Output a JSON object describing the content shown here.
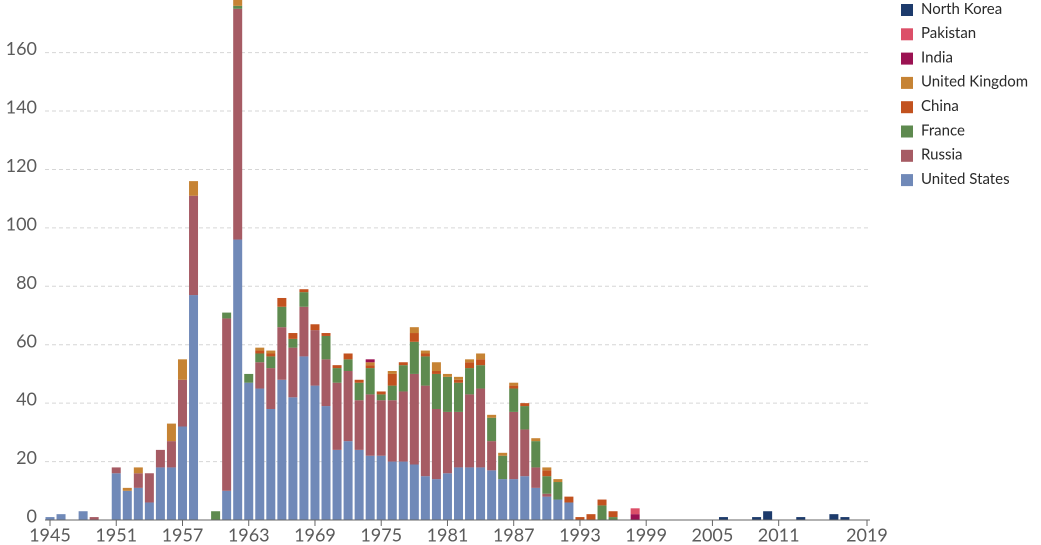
{
  "chart_data": {
    "type": "bar",
    "stacked": true,
    "legend": "right",
    "grid": true,
    "x": [
      1945,
      1946,
      1947,
      1948,
      1949,
      1950,
      1951,
      1952,
      1953,
      1954,
      1955,
      1956,
      1957,
      1958,
      1959,
      1960,
      1961,
      1962,
      1963,
      1964,
      1965,
      1966,
      1967,
      1968,
      1969,
      1970,
      1971,
      1972,
      1973,
      1974,
      1975,
      1976,
      1977,
      1978,
      1979,
      1980,
      1981,
      1982,
      1983,
      1984,
      1985,
      1986,
      1987,
      1988,
      1989,
      1990,
      1991,
      1992,
      1993,
      1994,
      1995,
      1996,
      1997,
      1998,
      1999,
      2000,
      2001,
      2002,
      2003,
      2004,
      2005,
      2006,
      2007,
      2008,
      2009,
      2010,
      2011,
      2012,
      2013,
      2014,
      2015,
      2016,
      2017,
      2018,
      2019
    ],
    "xlim": [
      1945,
      2019
    ],
    "xticks": [
      1945,
      1951,
      1957,
      1963,
      1969,
      1975,
      1981,
      1987,
      1993,
      1999,
      2005,
      2011,
      2019
    ],
    "ylim": [
      0,
      178
    ],
    "yticks": [
      0,
      20,
      40,
      60,
      80,
      100,
      120,
      140,
      160
    ],
    "series": [
      {
        "name": "United States",
        "color": "#7089b8",
        "values": [
          1,
          2,
          0,
          3,
          0,
          0,
          16,
          10,
          11,
          6,
          18,
          18,
          32,
          77,
          0,
          0,
          10,
          96,
          47,
          45,
          38,
          48,
          42,
          56,
          46,
          39,
          24,
          27,
          24,
          22,
          22,
          20,
          20,
          19,
          15,
          14,
          16,
          18,
          18,
          18,
          17,
          14,
          14,
          15,
          11,
          8,
          7,
          6,
          0,
          0,
          0,
          0,
          0,
          0,
          0,
          0,
          0,
          0,
          0,
          0,
          0,
          0,
          0,
          0,
          0,
          0,
          0,
          0,
          0,
          0,
          0,
          0,
          0,
          0,
          0
        ]
      },
      {
        "name": "Russia",
        "color": "#a65b64",
        "values": [
          0,
          0,
          0,
          0,
          1,
          0,
          2,
          0,
          5,
          10,
          6,
          9,
          16,
          34,
          0,
          0,
          59,
          79,
          0,
          9,
          14,
          18,
          17,
          17,
          19,
          16,
          23,
          24,
          17,
          21,
          19,
          21,
          24,
          31,
          31,
          24,
          21,
          19,
          25,
          27,
          10,
          0,
          23,
          16,
          7,
          1,
          0,
          0,
          0,
          0,
          0,
          0,
          0,
          0,
          0,
          0,
          0,
          0,
          0,
          0,
          0,
          0,
          0,
          0,
          0,
          0,
          0,
          0,
          0,
          0,
          0,
          0,
          0,
          0,
          0
        ]
      },
      {
        "name": "France",
        "color": "#5e8a4f",
        "values": [
          0,
          0,
          0,
          0,
          0,
          0,
          0,
          0,
          0,
          0,
          0,
          0,
          0,
          0,
          0,
          3,
          2,
          1,
          3,
          3,
          4,
          7,
          3,
          5,
          0,
          8,
          5,
          4,
          6,
          9,
          2,
          5,
          9,
          11,
          10,
          12,
          12,
          10,
          9,
          8,
          8,
          8,
          8,
          8,
          9,
          6,
          6,
          0,
          0,
          0,
          5,
          1,
          0,
          0,
          0,
          0,
          0,
          0,
          0,
          0,
          0,
          0,
          0,
          0,
          0,
          0,
          0,
          0,
          0,
          0,
          0,
          0,
          0,
          0,
          0
        ]
      },
      {
        "name": "China",
        "color": "#c2521f",
        "values": [
          0,
          0,
          0,
          0,
          0,
          0,
          0,
          0,
          0,
          0,
          0,
          0,
          0,
          0,
          0,
          0,
          0,
          0,
          0,
          1,
          1,
          3,
          2,
          1,
          2,
          1,
          1,
          2,
          1,
          1,
          1,
          4,
          1,
          3,
          1,
          1,
          0,
          1,
          2,
          2,
          0,
          0,
          1,
          1,
          0,
          2,
          0,
          2,
          1,
          2,
          2,
          2,
          0,
          0,
          0,
          0,
          0,
          0,
          0,
          0,
          0,
          0,
          0,
          0,
          0,
          0,
          0,
          0,
          0,
          0,
          0,
          0,
          0,
          0,
          0
        ]
      },
      {
        "name": "United Kingdom",
        "color": "#c68334",
        "values": [
          0,
          0,
          0,
          0,
          0,
          0,
          0,
          1,
          2,
          0,
          0,
          6,
          7,
          5,
          0,
          0,
          0,
          2,
          0,
          1,
          1,
          0,
          0,
          0,
          0,
          0,
          0,
          0,
          0,
          1,
          0,
          1,
          0,
          2,
          1,
          3,
          1,
          1,
          1,
          2,
          1,
          1,
          1,
          0,
          1,
          1,
          1,
          0,
          0,
          0,
          0,
          0,
          0,
          0,
          0,
          0,
          0,
          0,
          0,
          0,
          0,
          0,
          0,
          0,
          0,
          0,
          0,
          0,
          0,
          0,
          0,
          0,
          0,
          0,
          0
        ]
      },
      {
        "name": "India",
        "color": "#9b1252",
        "values": [
          0,
          0,
          0,
          0,
          0,
          0,
          0,
          0,
          0,
          0,
          0,
          0,
          0,
          0,
          0,
          0,
          0,
          0,
          0,
          0,
          0,
          0,
          0,
          0,
          0,
          0,
          0,
          0,
          0,
          1,
          0,
          0,
          0,
          0,
          0,
          0,
          0,
          0,
          0,
          0,
          0,
          0,
          0,
          0,
          0,
          0,
          0,
          0,
          0,
          0,
          0,
          0,
          0,
          2,
          0,
          0,
          0,
          0,
          0,
          0,
          0,
          0,
          0,
          0,
          0,
          0,
          0,
          0,
          0,
          0,
          0,
          0,
          0,
          0,
          0
        ]
      },
      {
        "name": "Pakistan",
        "color": "#dc4f68",
        "values": [
          0,
          0,
          0,
          0,
          0,
          0,
          0,
          0,
          0,
          0,
          0,
          0,
          0,
          0,
          0,
          0,
          0,
          0,
          0,
          0,
          0,
          0,
          0,
          0,
          0,
          0,
          0,
          0,
          0,
          0,
          0,
          0,
          0,
          0,
          0,
          0,
          0,
          0,
          0,
          0,
          0,
          0,
          0,
          0,
          0,
          0,
          0,
          0,
          0,
          0,
          0,
          0,
          0,
          2,
          0,
          0,
          0,
          0,
          0,
          0,
          0,
          0,
          0,
          0,
          0,
          0,
          0,
          0,
          0,
          0,
          0,
          0,
          0,
          0,
          0
        ]
      },
      {
        "name": "North Korea",
        "color": "#1d3b6c",
        "values": [
          0,
          0,
          0,
          0,
          0,
          0,
          0,
          0,
          0,
          0,
          0,
          0,
          0,
          0,
          0,
          0,
          0,
          0,
          0,
          0,
          0,
          0,
          0,
          0,
          0,
          0,
          0,
          0,
          0,
          0,
          0,
          0,
          0,
          0,
          0,
          0,
          0,
          0,
          0,
          0,
          0,
          0,
          0,
          0,
          0,
          0,
          0,
          0,
          0,
          0,
          0,
          0,
          0,
          0,
          0,
          0,
          0,
          0,
          0,
          0,
          0,
          1,
          0,
          0,
          1,
          3,
          0,
          0,
          1,
          0,
          0,
          2,
          1,
          0,
          0
        ]
      }
    ]
  }
}
